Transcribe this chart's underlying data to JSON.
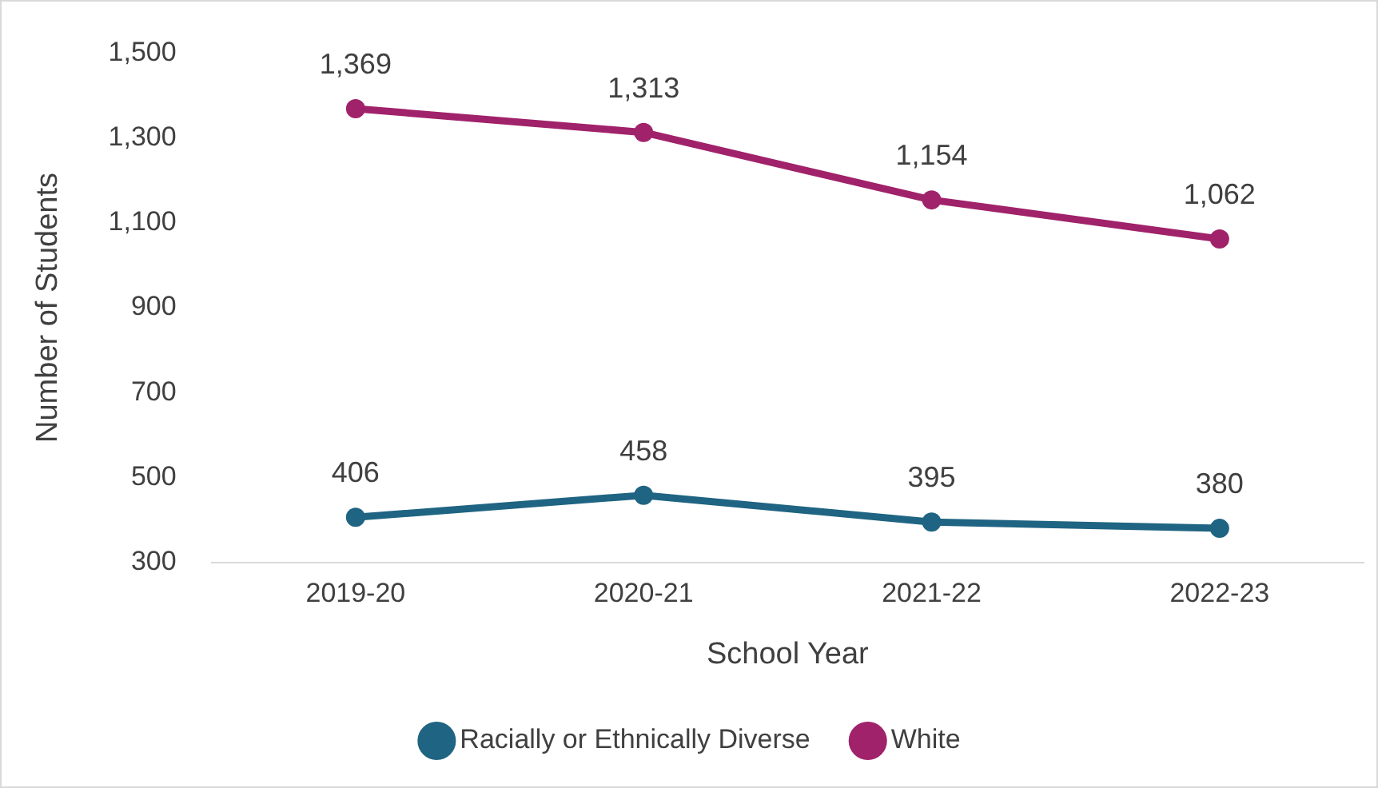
{
  "chart_data": {
    "type": "line",
    "xlabel": "School Year",
    "ylabel": "Number of Students",
    "categories": [
      "2019-20",
      "2020-21",
      "2021-22",
      "2022-23"
    ],
    "series": [
      {
        "name": "Racially or Ethnically Diverse",
        "color": "#1f6482",
        "values": [
          406,
          458,
          395,
          380
        ],
        "value_labels": [
          "406",
          "458",
          "395",
          "380"
        ]
      },
      {
        "name": "White",
        "color": "#a0226a",
        "values": [
          1369,
          1313,
          1154,
          1062
        ],
        "value_labels": [
          "1,369",
          "1,313",
          "1,154",
          "1,062"
        ]
      }
    ],
    "ylim": [
      300,
      1500
    ],
    "yticks": [
      300,
      500,
      700,
      900,
      {
        "value": 1100,
        "label": "1,100"
      },
      {
        "value": 1300,
        "label": "1,300"
      },
      {
        "value": 1500,
        "label": "1,500"
      }
    ],
    "grid": false,
    "legend": "bottom",
    "marker": "circle",
    "line_style": "solid"
  }
}
